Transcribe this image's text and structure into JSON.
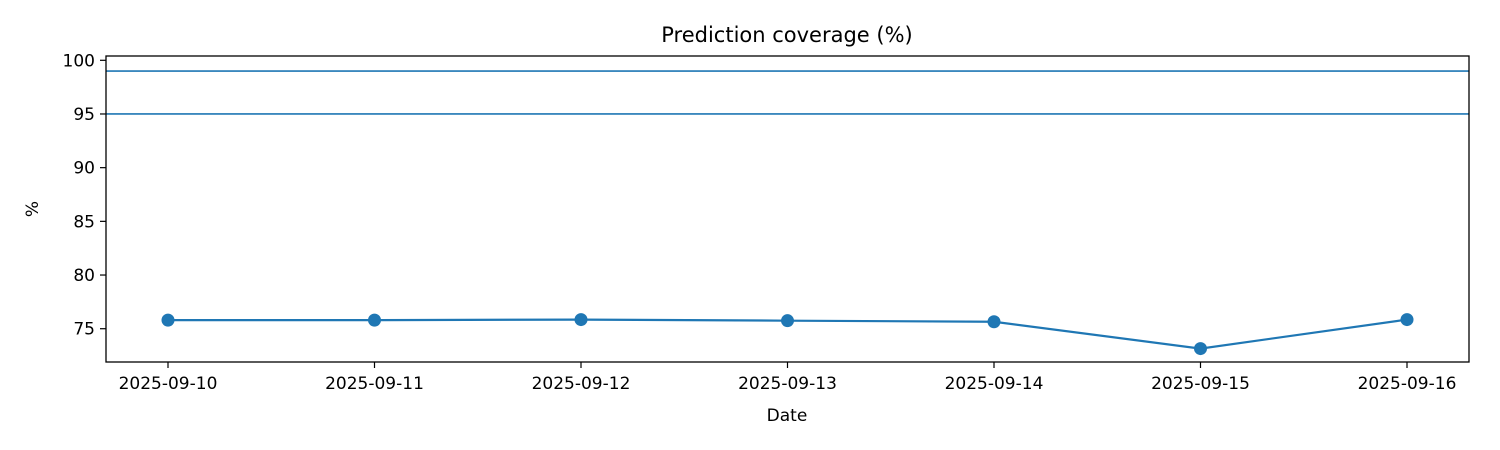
{
  "chart_data": {
    "type": "line",
    "title": "Prediction coverage (%)",
    "xlabel": "Date",
    "ylabel": "%",
    "x": [
      "2025-09-10",
      "2025-09-11",
      "2025-09-12",
      "2025-09-13",
      "2025-09-14",
      "2025-09-15",
      "2025-09-16"
    ],
    "series": [
      {
        "values": [
          75.8,
          75.8,
          75.85,
          75.75,
          75.65,
          73.15,
          75.85
        ],
        "color": "#1f77b4",
        "marker": "circle"
      }
    ],
    "reference_lines": [
      {
        "y": 99,
        "color": "#1f77b4"
      },
      {
        "y": 95,
        "color": "#1f77b4"
      }
    ],
    "ylim": [
      71.9,
      100.4
    ],
    "yticks": [
      "75",
      "80",
      "85",
      "90",
      "95",
      "100"
    ],
    "grid": false,
    "legend": "none"
  }
}
